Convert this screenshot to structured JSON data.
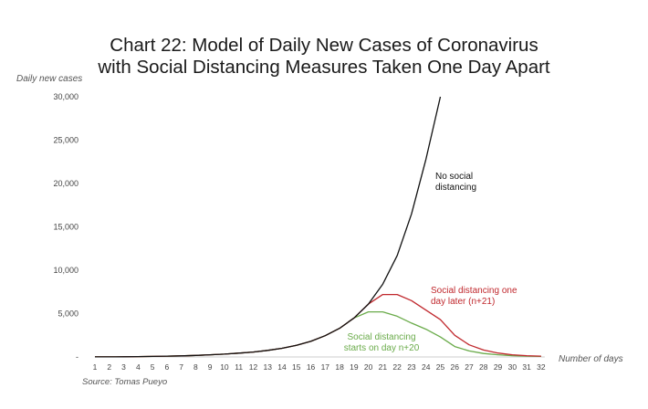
{
  "chart_data": {
    "type": "line",
    "title": [
      "Chart 22: Model of Daily New Cases of Coronavirus",
      "with Social Distancing Measures Taken One Day Apart"
    ],
    "ylabel": "Daily new cases",
    "xlabel": "Number of days",
    "source": "Source: Tomas Pueyo",
    "ylim": [
      0,
      30000
    ],
    "yticks": [
      0,
      5000,
      10000,
      15000,
      20000,
      25000,
      30000
    ],
    "ytick_labels": [
      "-",
      "5,000",
      "10,000",
      "15,000",
      "20,000",
      "25,000",
      "30,000"
    ],
    "x": [
      1,
      2,
      3,
      4,
      5,
      6,
      7,
      8,
      9,
      10,
      11,
      12,
      13,
      14,
      15,
      16,
      17,
      18,
      19,
      20,
      21,
      22,
      23,
      24,
      25,
      26,
      27,
      28,
      29,
      30,
      31,
      32
    ],
    "grid": false,
    "series": [
      {
        "name": "No social distancing",
        "color": "#111111",
        "x": [
          1,
          2,
          3,
          4,
          5,
          6,
          7,
          8,
          9,
          10,
          11,
          12,
          13,
          14,
          15,
          16,
          17,
          18,
          19,
          20,
          21,
          22,
          23,
          24,
          25
        ],
        "values": [
          10,
          15,
          25,
          40,
          60,
          90,
          130,
          180,
          250,
          330,
          440,
          570,
          760,
          1000,
          1350,
          1800,
          2450,
          3300,
          4500,
          6100,
          8400,
          11700,
          16500,
          22800,
          30000
        ]
      },
      {
        "name": "Social distancing one day later (n+21)",
        "color": "#c0282d",
        "x": [
          1,
          2,
          3,
          4,
          5,
          6,
          7,
          8,
          9,
          10,
          11,
          12,
          13,
          14,
          15,
          16,
          17,
          18,
          19,
          20,
          21,
          22,
          23,
          24,
          25,
          26,
          27,
          28,
          29,
          30,
          31,
          32
        ],
        "values": [
          10,
          15,
          25,
          40,
          60,
          90,
          130,
          180,
          250,
          330,
          440,
          570,
          760,
          1000,
          1350,
          1800,
          2450,
          3300,
          4500,
          6100,
          7200,
          7200,
          6500,
          5400,
          4300,
          2500,
          1400,
          800,
          450,
          250,
          150,
          100
        ]
      },
      {
        "name": "Social distancing starts on day n+20",
        "color": "#6aab4a",
        "x": [
          1,
          2,
          3,
          4,
          5,
          6,
          7,
          8,
          9,
          10,
          11,
          12,
          13,
          14,
          15,
          16,
          17,
          18,
          19,
          20,
          21,
          22,
          23,
          24,
          25,
          26,
          27,
          28,
          29,
          30,
          31,
          32
        ],
        "values": [
          10,
          15,
          25,
          40,
          60,
          90,
          130,
          180,
          250,
          330,
          440,
          570,
          760,
          1000,
          1350,
          1800,
          2450,
          3300,
          4500,
          5200,
          5200,
          4700,
          3900,
          3200,
          2300,
          1200,
          700,
          400,
          250,
          150,
          100,
          70
        ]
      }
    ],
    "annotations": [
      {
        "lines": [
          "No social",
          "distancing"
        ],
        "color": "#111111"
      },
      {
        "lines": [
          "Social distancing one",
          "day later (n+21)"
        ],
        "color": "#c0282d"
      },
      {
        "lines": [
          "Social distancing",
          "starts on day n+20"
        ],
        "color": "#6aab4a"
      }
    ]
  }
}
